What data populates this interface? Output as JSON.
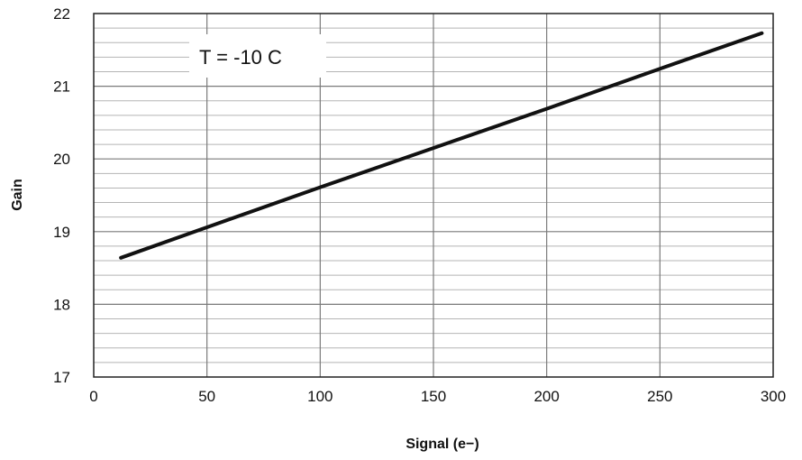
{
  "chart_data": {
    "type": "line",
    "title": "",
    "xlabel": "Signal (e−)",
    "ylabel": "Gain",
    "xlim": [
      0,
      300
    ],
    "ylim": [
      17,
      22
    ],
    "x_ticks": [
      0,
      50,
      100,
      150,
      200,
      250,
      300
    ],
    "y_ticks": [
      17,
      18,
      19,
      20,
      21,
      22
    ],
    "x_tick_labels": [
      "0",
      "50",
      "100",
      "150",
      "200",
      "250",
      "300"
    ],
    "y_tick_labels": [
      "17",
      "18",
      "19",
      "20",
      "21",
      "22"
    ],
    "grid": true,
    "minor_y_grid_step": 0.2,
    "annotation": "T = -10 C",
    "series": [
      {
        "x": [
          12,
          50,
          100,
          150,
          200,
          250,
          295
        ],
        "y": [
          18.64,
          19.06,
          19.61,
          20.15,
          20.69,
          21.24,
          21.73
        ],
        "color": "#111111"
      }
    ]
  }
}
